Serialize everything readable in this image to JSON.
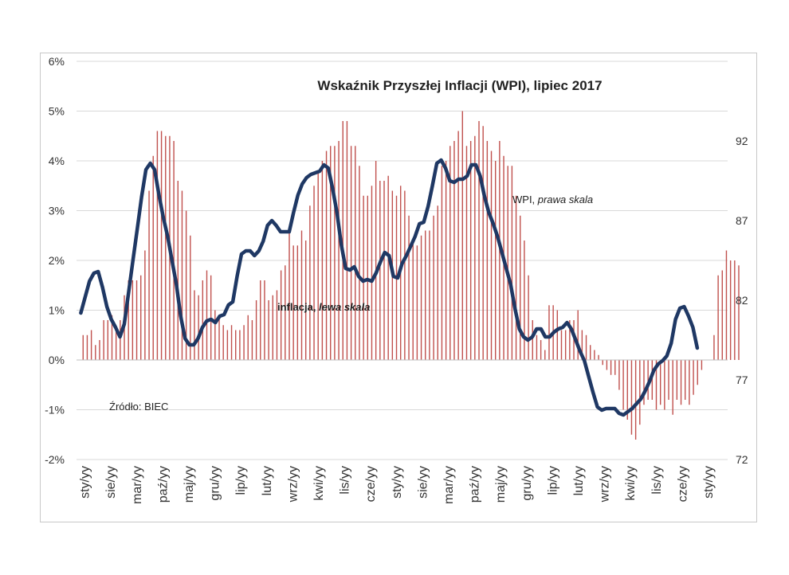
{
  "chart_data": {
    "type": "bar+line",
    "title": "Wskaźnik Przyszłej Inflacji (WPI), lipiec 2017",
    "xlabel": "",
    "left_axis": {
      "ylim": [
        -2,
        6
      ],
      "ticks": [
        "-2%",
        "-1%",
        "0%",
        "1%",
        "2%",
        "3%",
        "4%",
        "5%",
        "6%"
      ]
    },
    "right_axis": {
      "ylim": [
        72,
        97
      ],
      "ticks": [
        "72",
        "77",
        "82",
        "87",
        "92"
      ]
    },
    "x_tick_labels": [
      "sty/yy",
      "sie/yy",
      "mar/yy",
      "paź/yy",
      "maj/yy",
      "gru/yy",
      "lip/yy",
      "lut/yy",
      "wrz/yy",
      "kwi/yy",
      "lis/yy",
      "cze/yy",
      "sty/yy",
      "sie/yy",
      "mar/yy",
      "paź/yy",
      "maj/yy",
      "gru/yy",
      "lip/yy",
      "lut/yy",
      "wrz/yy",
      "kwi/yy",
      "lis/yy",
      "cze/yy",
      "sty/yy"
    ],
    "annotations": {
      "wpi_label": "WPI, ",
      "wpi_label_italic": "prawa skala",
      "inflation_label": "inflacja, ",
      "inflation_label_italic": "lewa skala",
      "source": "Źródło: BIEC"
    },
    "series": [
      {
        "name": "inflacja",
        "axis": "left",
        "type": "bar",
        "color": "#c0504d",
        "values": [
          0.5,
          0.5,
          0.6,
          0.3,
          0.4,
          0.8,
          0.8,
          0.9,
          0.6,
          0.8,
          1.3,
          1.6,
          1.6,
          1.6,
          1.7,
          2.2,
          3.4,
          4.1,
          4.6,
          4.6,
          4.5,
          4.5,
          4.4,
          3.6,
          3.4,
          3.0,
          2.5,
          1.4,
          1.3,
          1.6,
          1.8,
          1.7,
          1.0,
          0.9,
          0.7,
          0.6,
          0.7,
          0.6,
          0.6,
          0.7,
          0.9,
          0.8,
          1.2,
          1.6,
          1.6,
          1.2,
          1.3,
          1.4,
          1.8,
          1.9,
          2.6,
          2.3,
          2.3,
          2.6,
          2.4,
          3.1,
          3.5,
          3.8,
          4.0,
          4.2,
          4.3,
          4.3,
          4.4,
          4.8,
          4.8,
          4.3,
          4.3,
          3.9,
          3.3,
          3.3,
          3.5,
          4.0,
          3.6,
          3.6,
          3.7,
          3.4,
          3.3,
          3.5,
          3.4,
          2.9,
          2.4,
          2.3,
          2.5,
          2.6,
          2.6,
          2.9,
          3.1,
          3.9,
          4.0,
          4.3,
          4.4,
          4.6,
          5.0,
          4.3,
          4.4,
          4.5,
          4.8,
          4.7,
          4.4,
          4.2,
          4.0,
          4.4,
          4.1,
          3.9,
          3.9,
          3.3,
          2.9,
          2.4,
          1.7,
          0.8,
          0.5,
          0.4,
          0.2,
          1.1,
          1.1,
          1.0,
          0.6,
          0.6,
          0.8,
          0.8,
          1.0,
          0.6,
          0.5,
          0.3,
          0.2,
          0.1,
          -0.1,
          -0.2,
          -0.3,
          -0.3,
          -0.6,
          -1.0,
          -1.2,
          -1.5,
          -1.6,
          -1.3,
          -0.9,
          -0.8,
          -0.8,
          -1.0,
          -0.9,
          -1.0,
          -0.8,
          -1.1,
          -0.8,
          -0.9,
          -0.8,
          -0.9,
          -0.7,
          -0.5,
          -0.2,
          0.0,
          0.0,
          0.5,
          1.7,
          1.8,
          2.2,
          2.0,
          2.0,
          1.9
        ],
        "months_note": "monthly, Jan year1 .. Jun year13"
      },
      {
        "name": "WPI",
        "axis": "right",
        "type": "line",
        "color": "#1f3864",
        "points": [
          [
            0,
            81.2
          ],
          [
            2,
            83.2
          ],
          [
            3,
            83.7
          ],
          [
            4,
            83.8
          ],
          [
            5,
            82.8
          ],
          [
            6,
            81.6
          ],
          [
            7,
            80.8
          ],
          [
            8,
            80.3
          ],
          [
            9,
            79.7
          ],
          [
            10,
            80.5
          ],
          [
            11,
            82.5
          ],
          [
            12,
            84.5
          ],
          [
            13,
            86.5
          ],
          [
            14,
            88.5
          ],
          [
            15,
            90.2
          ],
          [
            16,
            90.6
          ],
          [
            17,
            90.2
          ],
          [
            18,
            88.6
          ],
          [
            19,
            87.2
          ],
          [
            20,
            86
          ],
          [
            21,
            84.5
          ],
          [
            22,
            83
          ],
          [
            23,
            81
          ],
          [
            24,
            79.6
          ],
          [
            25,
            79.2
          ],
          [
            26,
            79.2
          ],
          [
            27,
            79.6
          ],
          [
            28,
            80.3
          ],
          [
            29,
            80.7
          ],
          [
            30,
            80.8
          ],
          [
            31,
            80.6
          ],
          [
            32,
            81
          ],
          [
            33,
            81.1
          ],
          [
            34,
            81.7
          ],
          [
            35,
            81.9
          ],
          [
            36,
            83.5
          ],
          [
            37,
            84.9
          ],
          [
            38,
            85.1
          ],
          [
            39,
            85.1
          ],
          [
            40,
            84.8
          ],
          [
            41,
            85.1
          ],
          [
            42,
            85.7
          ],
          [
            43,
            86.7
          ],
          [
            44,
            87
          ],
          [
            45,
            86.7
          ],
          [
            46,
            86.3
          ],
          [
            47,
            86.3
          ],
          [
            48,
            86.3
          ],
          [
            49,
            87.5
          ],
          [
            50,
            88.6
          ],
          [
            51,
            89.3
          ],
          [
            52,
            89.7
          ],
          [
            53,
            89.9
          ],
          [
            54,
            90.0
          ],
          [
            55,
            90.1
          ],
          [
            56,
            90.5
          ],
          [
            57,
            90.3
          ],
          [
            58,
            89
          ],
          [
            59,
            87.5
          ],
          [
            60,
            85.5
          ],
          [
            61,
            84.0
          ],
          [
            62,
            83.9
          ],
          [
            63,
            84.1
          ],
          [
            64,
            83.5
          ],
          [
            65,
            83.2
          ],
          [
            66,
            83.3
          ],
          [
            67,
            83.2
          ],
          [
            68,
            83.7
          ],
          [
            69,
            84.4
          ],
          [
            70,
            85.0
          ],
          [
            71,
            84.8
          ],
          [
            72,
            83.5
          ],
          [
            73,
            83.4
          ],
          [
            74,
            84.3
          ],
          [
            75,
            84.8
          ],
          [
            76,
            85.4
          ],
          [
            77,
            86
          ],
          [
            78,
            86.8
          ],
          [
            79,
            86.9
          ],
          [
            80,
            87.9
          ],
          [
            81,
            89.2
          ],
          [
            82,
            90.6
          ],
          [
            83,
            90.8
          ],
          [
            84,
            90.3
          ],
          [
            85,
            89.5
          ],
          [
            86,
            89.4
          ],
          [
            87,
            89.6
          ],
          [
            88,
            89.6
          ],
          [
            89,
            89.8
          ],
          [
            90,
            90.5
          ],
          [
            91,
            90.5
          ],
          [
            92,
            89.8
          ],
          [
            93,
            88.5
          ],
          [
            94,
            87.5
          ],
          [
            95,
            86.8
          ],
          [
            96,
            86
          ],
          [
            97,
            85
          ],
          [
            98,
            84
          ],
          [
            99,
            83
          ],
          [
            100,
            81.5
          ],
          [
            101,
            80.2
          ],
          [
            102,
            79.7
          ],
          [
            103,
            79.5
          ],
          [
            104,
            79.7
          ],
          [
            105,
            80.2
          ],
          [
            106,
            80.2
          ],
          [
            107,
            79.7
          ],
          [
            108,
            79.7
          ],
          [
            109,
            80
          ],
          [
            110,
            80.2
          ],
          [
            111,
            80.3
          ],
          [
            112,
            80.6
          ],
          [
            113,
            80.2
          ],
          [
            114,
            79.5
          ],
          [
            115,
            78.8
          ],
          [
            116,
            78.2
          ],
          [
            117,
            77.2
          ],
          [
            118,
            76.2
          ],
          [
            119,
            75.3
          ],
          [
            120,
            75.1
          ],
          [
            121,
            75.2
          ],
          [
            122,
            75.2
          ],
          [
            123,
            75.2
          ],
          [
            124,
            74.9
          ],
          [
            125,
            74.8
          ],
          [
            126,
            75.0
          ],
          [
            127,
            75.2
          ],
          [
            128,
            75.5
          ],
          [
            129,
            75.8
          ],
          [
            130,
            76.3
          ],
          [
            131,
            76.9
          ],
          [
            132,
            77.6
          ],
          [
            133,
            78.0
          ],
          [
            134,
            78.2
          ],
          [
            135,
            78.5
          ],
          [
            136,
            79.3
          ],
          [
            137,
            80.8
          ],
          [
            138,
            81.5
          ],
          [
            139,
            81.6
          ],
          [
            140,
            81
          ],
          [
            141,
            80.3
          ],
          [
            142,
            79.0
          ]
        ]
      }
    ],
    "grid": "horizontal",
    "legend": "none"
  }
}
